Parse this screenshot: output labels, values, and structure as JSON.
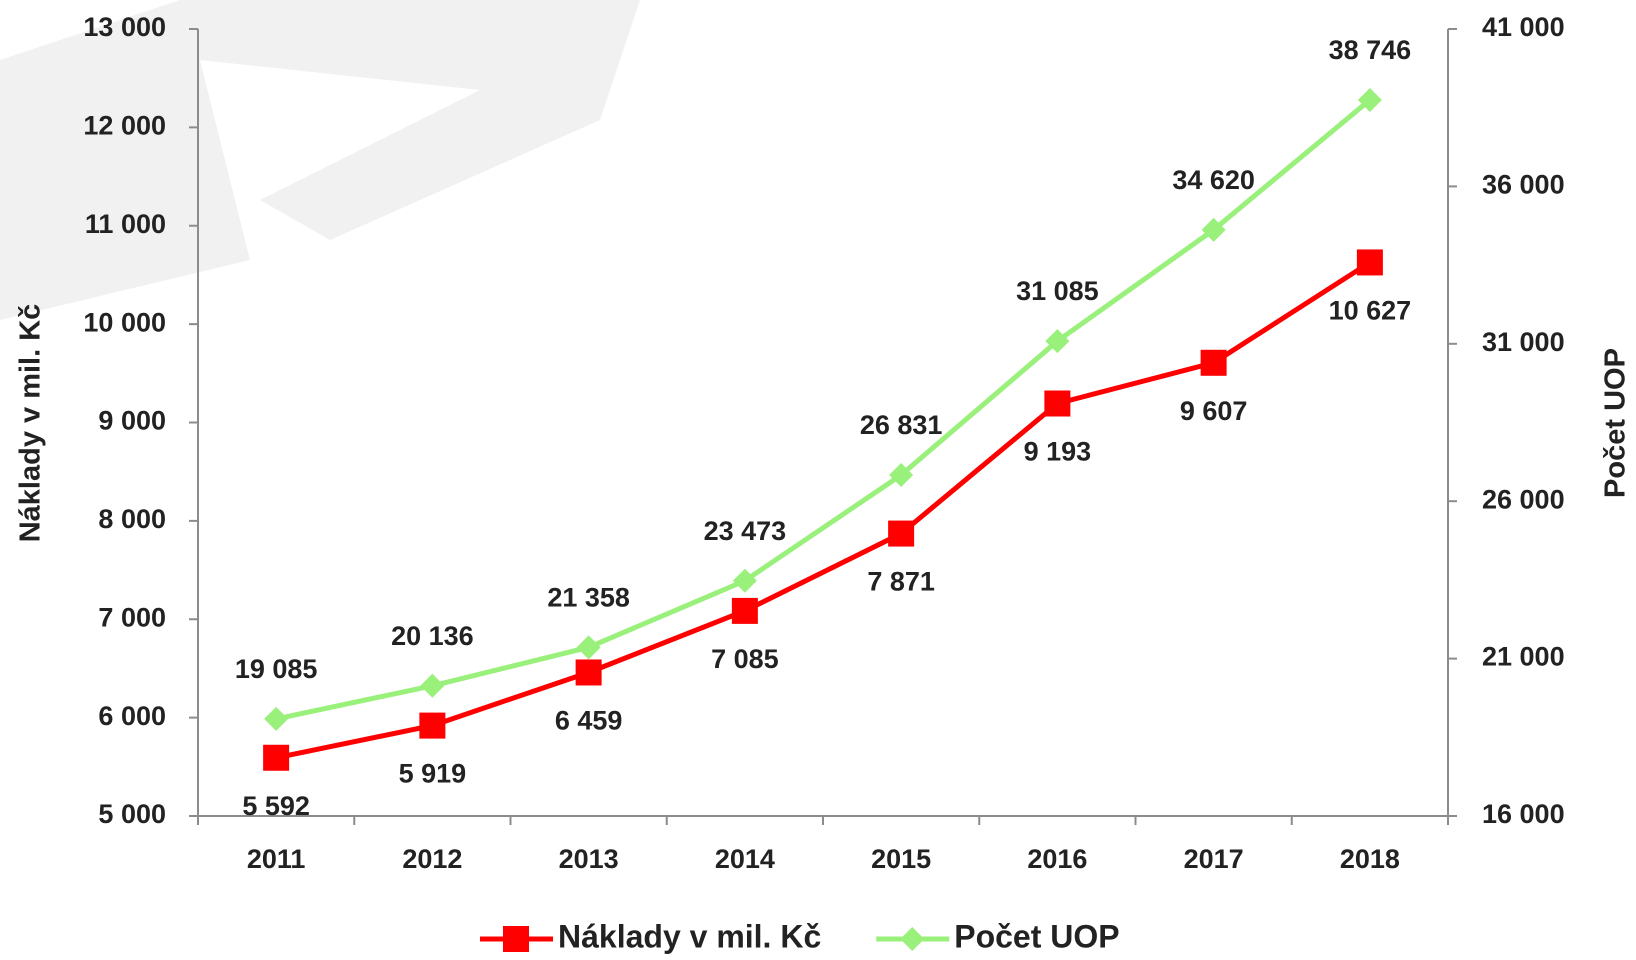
{
  "chart_data": {
    "type": "line",
    "categories": [
      "2011",
      "2012",
      "2013",
      "2014",
      "2015",
      "2016",
      "2017",
      "2018"
    ],
    "ylabel": "Náklady v mil. Kč",
    "y2label": "Počet UOP",
    "ylim": [
      5000,
      13000
    ],
    "yticks": [
      {
        "value": 5000,
        "label": "5 000"
      },
      {
        "value": 6000,
        "label": "6 000"
      },
      {
        "value": 7000,
        "label": "7 000"
      },
      {
        "value": 8000,
        "label": "8 000"
      },
      {
        "value": 9000,
        "label": "9 000"
      },
      {
        "value": 10000,
        "label": "10 000"
      },
      {
        "value": 11000,
        "label": "11 000"
      },
      {
        "value": 12000,
        "label": "12 000"
      },
      {
        "value": 13000,
        "label": "13 000"
      }
    ],
    "y2lim": [
      16000,
      41000
    ],
    "y2ticks": [
      {
        "value": 16000,
        "label": "16 000"
      },
      {
        "value": 21000,
        "label": "21 000"
      },
      {
        "value": 26000,
        "label": "26 000"
      },
      {
        "value": 31000,
        "label": "31 000"
      },
      {
        "value": 36000,
        "label": "36 000"
      },
      {
        "value": 41000,
        "label": "41 000"
      }
    ],
    "legend": "bottom",
    "series": [
      {
        "name": "Náklady v mil. Kč",
        "color": "#ff0000",
        "marker": "square",
        "axis": "y",
        "values": [
          5592,
          5919,
          6459,
          7085,
          7871,
          9193,
          9607,
          10627
        ],
        "value_labels": [
          "5 592",
          "5 919",
          "6 459",
          "7 085",
          "7 871",
          "9 193",
          "9 607",
          "10 627"
        ]
      },
      {
        "name": "Počet UOP",
        "color": "#99f07a",
        "marker": "diamond",
        "axis": "y2",
        "values": [
          19085,
          20136,
          21358,
          23473,
          26831,
          31085,
          34620,
          38746
        ],
        "value_labels": [
          "19 085",
          "20 136",
          "21 358",
          "23 473",
          "26 831",
          "31 085",
          "34 620",
          "38 746"
        ]
      }
    ]
  }
}
